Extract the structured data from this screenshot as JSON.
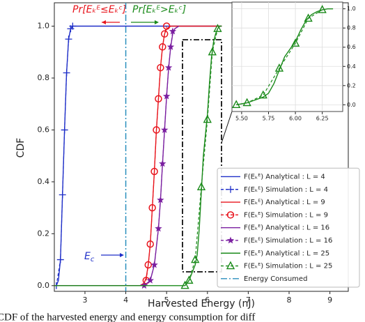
{
  "chart_data": [
    {
      "type": "line",
      "x_label": "Harvested Energy (nJ)",
      "y_label": "CDF",
      "xlim": [
        2.25,
        9.45
      ],
      "ylim": [
        -0.022,
        1.09
      ],
      "xticks": [
        3,
        4,
        5,
        6,
        7,
        8,
        9
      ],
      "yticks": [
        {
          "value": 0,
          "label": "0.0"
        },
        {
          "value": 0.2,
          "label": "0.2"
        },
        {
          "value": 0.4,
          "label": "0.4"
        },
        {
          "value": 0.6,
          "label": "0.6"
        },
        {
          "value": 0.8,
          "label": "0.8"
        },
        {
          "value": 1,
          "label": "1.0"
        }
      ],
      "grid": false,
      "legend": "lower right",
      "series": [
        {
          "name": "F(Eₖᴱ) Analytical : L = 4",
          "color": "#1f2fc8",
          "style": "solid",
          "marker": "none",
          "x": [
            2.25,
            2.3,
            2.35,
            2.4,
            2.45,
            2.5,
            2.55,
            2.6,
            2.65,
            2.7,
            6.35
          ],
          "values": [
            0,
            0,
            0.02,
            0.1,
            0.35,
            0.6,
            0.82,
            0.95,
            0.99,
            1,
            1
          ]
        },
        {
          "name": "F(Eₖᴱ) Simulation : L = 4",
          "color": "#1f2fc8",
          "style": "dashed",
          "marker": "plus",
          "x": [
            2.3,
            2.4,
            2.45,
            2.5,
            2.55,
            2.6,
            2.65,
            2.7
          ],
          "values": [
            0,
            0.1,
            0.35,
            0.6,
            0.82,
            0.95,
            0.99,
            1
          ]
        },
        {
          "name": "F(Eₖᴱ) Analytical : L = 9",
          "color": "#e8141c",
          "style": "solid",
          "marker": "none",
          "x": [
            2.25,
            4.35,
            4.45,
            4.5,
            4.55,
            4.6,
            4.65,
            4.7,
            4.75,
            4.8,
            4.85,
            4.9,
            4.95,
            5.0,
            5.1,
            6.35
          ],
          "values": [
            0,
            0,
            0.01,
            0.03,
            0.08,
            0.16,
            0.3,
            0.44,
            0.6,
            0.72,
            0.84,
            0.92,
            0.97,
            0.99,
            1,
            1
          ]
        },
        {
          "name": "F(Eₖᴱ) Simulation : L = 9",
          "color": "#e8141c",
          "style": "dashed",
          "marker": "circle",
          "x": [
            4.5,
            4.55,
            4.6,
            4.65,
            4.7,
            4.75,
            4.8,
            4.85,
            4.9,
            4.95,
            5.0
          ],
          "values": [
            0.02,
            0.08,
            0.16,
            0.3,
            0.44,
            0.6,
            0.72,
            0.84,
            0.92,
            0.97,
            1
          ]
        },
        {
          "name": "F(Eₖᴱ) Analytical : L = 16",
          "color": "#7a1fa0",
          "style": "solid",
          "marker": "none",
          "x": [
            2.25,
            4.45,
            4.6,
            4.7,
            4.8,
            4.85,
            4.9,
            4.95,
            5.0,
            5.05,
            5.1,
            5.15,
            5.2,
            5.3
          ],
          "values": [
            0,
            0,
            0.02,
            0.08,
            0.22,
            0.33,
            0.47,
            0.6,
            0.73,
            0.84,
            0.92,
            0.97,
            0.99,
            1
          ]
        },
        {
          "name": "F(Eₖᴱ) Simulation : L = 16",
          "color": "#7a1fa0",
          "style": "dashed",
          "marker": "star",
          "x": [
            4.45,
            4.6,
            4.7,
            4.8,
            4.85,
            4.9,
            4.95,
            5.0,
            5.05,
            5.1,
            5.15
          ],
          "values": [
            0,
            0.02,
            0.08,
            0.22,
            0.33,
            0.47,
            0.6,
            0.73,
            0.84,
            0.92,
            0.98
          ]
        },
        {
          "name": "F(Eₖᴱ) Analytical : L = 25",
          "color": "#1a8a1a",
          "style": "solid",
          "marker": "none",
          "x": [
            2.25,
            5.45,
            5.5,
            5.55,
            5.6,
            5.7,
            5.75,
            5.8,
            5.85,
            5.9,
            6.0,
            6.05,
            6.1,
            6.15,
            6.2,
            6.25,
            6.3,
            6.35
          ],
          "values": [
            0,
            0,
            0.01,
            0.02,
            0.04,
            0.08,
            0.12,
            0.22,
            0.36,
            0.5,
            0.66,
            0.78,
            0.88,
            0.94,
            0.97,
            0.99,
            1,
            1
          ]
        },
        {
          "name": "F(Eₖᴱ) Simulation : L = 25",
          "color": "#1a8a1a",
          "style": "dashed",
          "marker": "triangle",
          "x": [
            5.45,
            5.55,
            5.7,
            5.85,
            6.0,
            6.12,
            6.25
          ],
          "values": [
            0,
            0.02,
            0.1,
            0.38,
            0.64,
            0.9,
            0.99
          ]
        }
      ],
      "vlines": [
        {
          "name": "Energy Consumed",
          "color": "#2a8fbd",
          "x": 4
        }
      ],
      "annotations": [
        {
          "text": "Pr[Eₖᴱ≤Eₖᶜ]",
          "color": "#e8141c"
        },
        {
          "text": "Pr[Eₖᴱ>Eₖᶜ]",
          "color": "#1a8a1a"
        },
        {
          "text": "E",
          "sub": "c",
          "color": "#1f2fc8"
        }
      ],
      "caption": "CDF of the harvested energy and energy consumption for diff"
    },
    {
      "type": "line",
      "xlim": [
        5.41,
        6.44
      ],
      "ylim": [
        -0.07,
        1.07
      ],
      "xticks": [
        {
          "value": 5.5,
          "label": "5.50"
        },
        {
          "value": 5.75,
          "label": "5.75"
        },
        {
          "value": 6,
          "label": "6.00"
        },
        {
          "value": 6.25,
          "label": "6.25"
        }
      ],
      "yticks": [
        {
          "value": 0,
          "label": "0.0"
        },
        {
          "value": 0.2,
          "label": "0.2"
        },
        {
          "value": 0.4,
          "label": "0.4"
        },
        {
          "value": 0.6,
          "label": "0.6"
        },
        {
          "value": 0.8,
          "label": "0.8"
        },
        {
          "value": 1,
          "label": "1.0"
        }
      ],
      "grid": true,
      "series": [
        {
          "color": "#1a8a1a",
          "style": "solid",
          "marker": "none",
          "x": [
            5.45,
            5.5,
            5.55,
            5.6,
            5.7,
            5.75,
            5.8,
            5.85,
            5.9,
            6.0,
            6.05,
            6.1,
            6.15,
            6.2,
            6.25,
            6.3,
            6.35
          ],
          "values": [
            0,
            0.01,
            0.02,
            0.04,
            0.08,
            0.12,
            0.22,
            0.36,
            0.5,
            0.66,
            0.78,
            0.88,
            0.94,
            0.97,
            0.99,
            1,
            1
          ]
        },
        {
          "color": "#1a8a1a",
          "style": "dashed",
          "marker": "triangle",
          "x": [
            5.45,
            5.55,
            5.7,
            5.85,
            6.0,
            6.12,
            6.25
          ],
          "values": [
            0,
            0.02,
            0.1,
            0.38,
            0.64,
            0.9,
            0.99
          ]
        }
      ]
    }
  ]
}
